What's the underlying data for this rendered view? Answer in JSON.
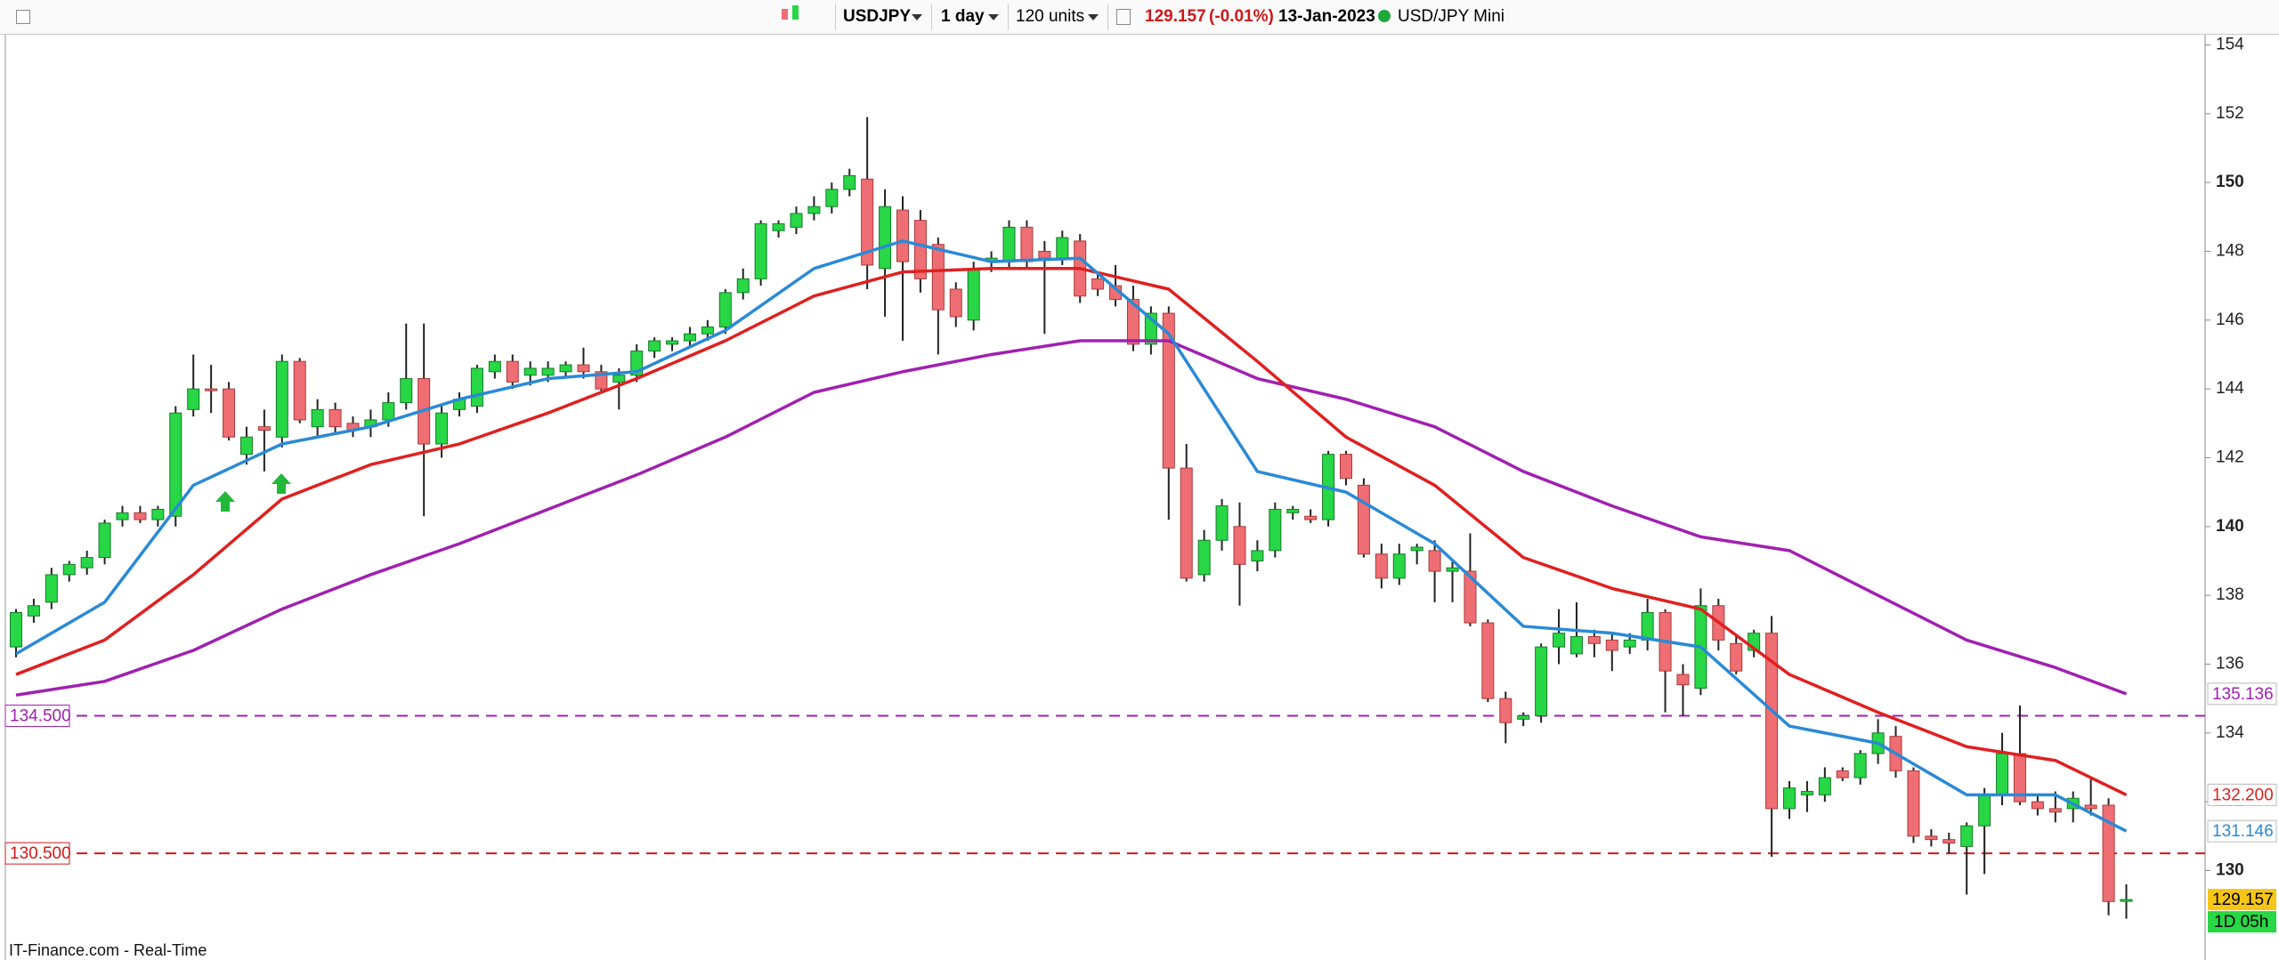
{
  "toolbar": {
    "symbol": "USDJPY",
    "interval": "1 day",
    "units": "120 units",
    "change": "(-0.01%)",
    "date": "13-Jan-2023",
    "instrument": "USD/JPY Mini"
  },
  "footer": "IT-Finance.com - Real-Time",
  "chart_data": {
    "type": "candlestick",
    "ylim": [
      127.4,
      154.25
    ],
    "yticks": [
      130,
      132,
      134,
      136,
      138,
      140,
      142,
      144,
      146,
      148,
      150,
      152,
      154
    ],
    "up_color": "#27d745",
    "down_color": "#ee6e73",
    "countdown": "1D 05h",
    "ohlc": [
      [
        136.5,
        137.6,
        136.2,
        137.5
      ],
      [
        137.4,
        137.9,
        137.2,
        137.7
      ],
      [
        137.8,
        138.8,
        137.6,
        138.6
      ],
      [
        138.6,
        139.0,
        138.4,
        138.9
      ],
      [
        138.8,
        139.3,
        138.6,
        139.1
      ],
      [
        139.1,
        140.2,
        138.9,
        140.1
      ],
      [
        140.2,
        140.6,
        140.0,
        140.4
      ],
      [
        140.4,
        140.6,
        140.1,
        140.2
      ],
      [
        140.2,
        140.6,
        140.0,
        140.5
      ],
      [
        140.3,
        143.5,
        140.0,
        143.3
      ],
      [
        143.4,
        145.0,
        143.2,
        144.0
      ],
      [
        144.0,
        144.7,
        143.3,
        143.95
      ],
      [
        144.0,
        144.2,
        142.5,
        142.6
      ],
      [
        142.1,
        142.9,
        141.8,
        142.6
      ],
      [
        142.9,
        143.4,
        141.6,
        142.8
      ],
      [
        142.6,
        145.0,
        142.3,
        144.8
      ],
      [
        144.8,
        144.9,
        143.0,
        143.1
      ],
      [
        142.9,
        143.7,
        142.6,
        143.4
      ],
      [
        143.4,
        143.6,
        142.7,
        142.9
      ],
      [
        143.0,
        143.2,
        142.6,
        142.8
      ],
      [
        142.9,
        143.4,
        142.6,
        143.1
      ],
      [
        143.1,
        143.9,
        142.9,
        143.6
      ],
      [
        143.6,
        145.9,
        143.4,
        144.3
      ],
      [
        144.3,
        145.9,
        140.3,
        142.4
      ],
      [
        142.4,
        143.5,
        142.0,
        143.3
      ],
      [
        143.4,
        143.9,
        143.2,
        143.7
      ],
      [
        143.5,
        144.7,
        143.3,
        144.6
      ],
      [
        144.5,
        145.0,
        144.3,
        144.8
      ],
      [
        144.8,
        145.0,
        144.0,
        144.2
      ],
      [
        144.4,
        144.8,
        144.1,
        144.6
      ],
      [
        144.4,
        144.8,
        144.2,
        144.6
      ],
      [
        144.5,
        144.8,
        144.3,
        144.7
      ],
      [
        144.7,
        145.2,
        144.3,
        144.5
      ],
      [
        144.5,
        144.7,
        143.9,
        144.0
      ],
      [
        144.2,
        144.6,
        143.4,
        144.4
      ],
      [
        144.4,
        145.3,
        144.2,
        145.1
      ],
      [
        145.1,
        145.5,
        144.9,
        145.4
      ],
      [
        145.3,
        145.5,
        145.1,
        145.4
      ],
      [
        145.4,
        145.8,
        145.2,
        145.6
      ],
      [
        145.6,
        146.0,
        145.4,
        145.8
      ],
      [
        145.8,
        146.9,
        145.6,
        146.8
      ],
      [
        146.8,
        147.5,
        146.6,
        147.2
      ],
      [
        147.2,
        148.9,
        147.0,
        148.8
      ],
      [
        148.6,
        148.9,
        148.4,
        148.8
      ],
      [
        148.7,
        149.3,
        148.5,
        149.1
      ],
      [
        149.1,
        149.6,
        148.9,
        149.3
      ],
      [
        149.3,
        150.0,
        149.1,
        149.8
      ],
      [
        149.8,
        150.4,
        149.6,
        150.2
      ],
      [
        150.1,
        151.9,
        146.9,
        147.6
      ],
      [
        147.5,
        149.8,
        146.1,
        149.3
      ],
      [
        149.2,
        149.6,
        145.4,
        147.7
      ],
      [
        148.9,
        149.2,
        146.8,
        147.2
      ],
      [
        148.2,
        148.4,
        145.0,
        146.3
      ],
      [
        146.9,
        147.1,
        145.8,
        146.1
      ],
      [
        146.0,
        147.7,
        145.7,
        147.5
      ],
      [
        147.7,
        148.0,
        147.4,
        147.8
      ],
      [
        147.7,
        148.9,
        147.5,
        148.7
      ],
      [
        148.7,
        148.9,
        147.5,
        147.7
      ],
      [
        148.0,
        148.3,
        145.6,
        147.8
      ],
      [
        147.8,
        148.6,
        147.6,
        148.4
      ],
      [
        148.3,
        148.5,
        146.5,
        146.7
      ],
      [
        147.2,
        147.4,
        146.7,
        146.9
      ],
      [
        147.0,
        147.6,
        146.4,
        146.6
      ],
      [
        146.6,
        147.0,
        145.1,
        145.3
      ],
      [
        145.3,
        146.4,
        145.0,
        146.2
      ],
      [
        146.2,
        146.4,
        140.2,
        141.7
      ],
      [
        141.7,
        142.4,
        138.4,
        138.5
      ],
      [
        138.6,
        139.9,
        138.4,
        139.6
      ],
      [
        139.6,
        140.8,
        139.3,
        140.6
      ],
      [
        140.0,
        140.7,
        137.7,
        138.9
      ],
      [
        139.0,
        139.6,
        138.7,
        139.3
      ],
      [
        139.3,
        140.7,
        139.1,
        140.5
      ],
      [
        140.4,
        140.6,
        140.2,
        140.5
      ],
      [
        140.3,
        140.5,
        140.1,
        140.2
      ],
      [
        140.2,
        142.2,
        140.0,
        142.1
      ],
      [
        142.1,
        142.2,
        141.2,
        141.4
      ],
      [
        141.2,
        141.4,
        139.1,
        139.2
      ],
      [
        139.2,
        139.5,
        138.2,
        138.5
      ],
      [
        138.5,
        139.5,
        138.3,
        139.2
      ],
      [
        139.3,
        139.5,
        138.9,
        139.4
      ],
      [
        139.3,
        139.6,
        137.8,
        138.7
      ],
      [
        138.7,
        139.0,
        137.8,
        138.8
      ],
      [
        138.7,
        139.8,
        137.1,
        137.2
      ],
      [
        137.2,
        137.3,
        134.9,
        135.0
      ],
      [
        135.0,
        135.2,
        133.7,
        134.3
      ],
      [
        134.4,
        134.6,
        134.2,
        134.5
      ],
      [
        134.5,
        136.6,
        134.3,
        136.5
      ],
      [
        136.5,
        137.6,
        136.0,
        136.9
      ],
      [
        136.3,
        137.8,
        136.2,
        136.8
      ],
      [
        136.8,
        137.0,
        136.2,
        136.6
      ],
      [
        136.7,
        136.9,
        135.8,
        136.4
      ],
      [
        136.5,
        136.9,
        136.3,
        136.7
      ],
      [
        136.7,
        137.9,
        136.4,
        137.5
      ],
      [
        137.5,
        137.6,
        134.6,
        135.8
      ],
      [
        135.7,
        136.0,
        134.5,
        135.4
      ],
      [
        135.3,
        138.2,
        135.1,
        137.7
      ],
      [
        137.7,
        137.9,
        136.4,
        136.7
      ],
      [
        136.6,
        136.8,
        135.7,
        135.8
      ],
      [
        136.4,
        137.0,
        136.2,
        136.9
      ],
      [
        136.9,
        137.4,
        130.4,
        131.8
      ],
      [
        131.8,
        132.6,
        131.5,
        132.4
      ],
      [
        132.2,
        132.6,
        131.7,
        132.3
      ],
      [
        132.2,
        133.0,
        132.0,
        132.7
      ],
      [
        132.9,
        133.0,
        132.6,
        132.7
      ],
      [
        132.7,
        133.5,
        132.5,
        133.4
      ],
      [
        133.4,
        134.4,
        133.1,
        134.0
      ],
      [
        133.9,
        134.2,
        132.7,
        132.9
      ],
      [
        132.9,
        133.0,
        130.8,
        131.0
      ],
      [
        131.0,
        131.2,
        130.7,
        130.9
      ],
      [
        130.9,
        131.1,
        130.5,
        130.8
      ],
      [
        130.7,
        131.4,
        129.3,
        131.3
      ],
      [
        131.3,
        132.4,
        129.9,
        132.2
      ],
      [
        132.2,
        134.0,
        131.9,
        133.4
      ],
      [
        133.4,
        134.8,
        131.9,
        132.0
      ],
      [
        132.0,
        132.2,
        131.6,
        131.8
      ],
      [
        131.8,
        132.3,
        131.4,
        131.7
      ],
      [
        131.8,
        132.3,
        131.4,
        132.1
      ],
      [
        131.9,
        132.7,
        131.6,
        131.8
      ],
      [
        131.9,
        132.1,
        128.7,
        129.1
      ],
      [
        129.15,
        129.6,
        128.6,
        129.157
      ]
    ],
    "ma_x": [
      0,
      5,
      10,
      15,
      20,
      25,
      30,
      35,
      40,
      45,
      50,
      55,
      60,
      65,
      70,
      75,
      80,
      85,
      90,
      95,
      100,
      105,
      110,
      115,
      119
    ],
    "series": [
      {
        "color": "#a020b0",
        "end_label": "135.136",
        "values": [
          135.1,
          135.5,
          136.4,
          137.6,
          138.6,
          139.5,
          140.5,
          141.5,
          142.6,
          143.9,
          144.5,
          145.0,
          145.4,
          145.4,
          144.3,
          143.7,
          142.9,
          141.6,
          140.6,
          139.7,
          139.3,
          138.0,
          136.7,
          135.9,
          135.136
        ]
      },
      {
        "color": "#e02020",
        "end_label": "132.200",
        "values": [
          135.7,
          136.7,
          138.6,
          140.8,
          141.8,
          142.4,
          143.3,
          144.3,
          145.4,
          146.7,
          147.4,
          147.5,
          147.5,
          146.9,
          144.8,
          142.6,
          141.2,
          139.1,
          138.2,
          137.6,
          135.7,
          134.6,
          133.6,
          133.2,
          132.2
        ]
      },
      {
        "color": "#2a8ad6",
        "end_label": "131.146",
        "values": [
          136.3,
          137.8,
          141.2,
          142.4,
          142.9,
          143.7,
          144.3,
          144.5,
          145.7,
          147.5,
          148.3,
          147.7,
          147.8,
          145.6,
          141.6,
          141.0,
          139.5,
          137.1,
          136.9,
          136.5,
          134.2,
          133.7,
          132.2,
          132.2,
          131.146
        ]
      }
    ],
    "levels": [
      {
        "value": 134.5,
        "label": "134.500",
        "color": "#a020b0"
      },
      {
        "value": 130.5,
        "label": "130.500",
        "color": "#d01818"
      }
    ]
  }
}
